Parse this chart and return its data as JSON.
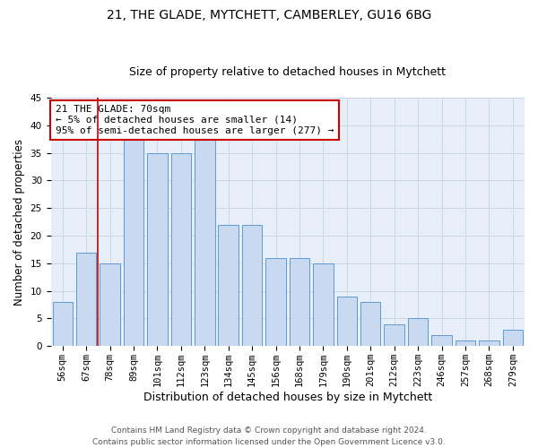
{
  "title1": "21, THE GLADE, MYTCHETT, CAMBERLEY, GU16 6BG",
  "title2": "Size of property relative to detached houses in Mytchett",
  "xlabel": "Distribution of detached houses by size in Mytchett",
  "ylabel": "Number of detached properties",
  "categories": [
    "56sqm",
    "67sqm",
    "78sqm",
    "89sqm",
    "101sqm",
    "112sqm",
    "123sqm",
    "134sqm",
    "145sqm",
    "156sqm",
    "168sqm",
    "179sqm",
    "190sqm",
    "201sqm",
    "212sqm",
    "223sqm",
    "246sqm",
    "257sqm",
    "268sqm",
    "279sqm"
  ],
  "values": [
    8,
    17,
    15,
    38,
    35,
    35,
    38,
    22,
    22,
    16,
    16,
    15,
    9,
    8,
    4,
    5,
    2,
    1,
    1,
    3
  ],
  "bar_color": "#c9d9f0",
  "bar_edge_color": "#5b9bd5",
  "highlight_color": "#cc0000",
  "annotation_line": "21 THE GLADE: 70sqm",
  "annotation_line2": "← 5% of detached houses are smaller (14)",
  "annotation_line3": "95% of semi-detached houses are larger (277) →",
  "annotation_box_color": "#ffffff",
  "annotation_box_edge": "#cc0000",
  "ylim": [
    0,
    45
  ],
  "yticks": [
    0,
    5,
    10,
    15,
    20,
    25,
    30,
    35,
    40,
    45
  ],
  "grid_color": "#ccd6e8",
  "background_color": "#e8eef8",
  "footer1": "Contains HM Land Registry data © Crown copyright and database right 2024.",
  "footer2": "Contains public sector information licensed under the Open Government Licence v3.0.",
  "title1_fontsize": 10,
  "title2_fontsize": 9,
  "ylabel_fontsize": 8.5,
  "xlabel_fontsize": 9,
  "tick_fontsize": 7.5,
  "annotation_fontsize": 8,
  "footer_fontsize": 6.5
}
